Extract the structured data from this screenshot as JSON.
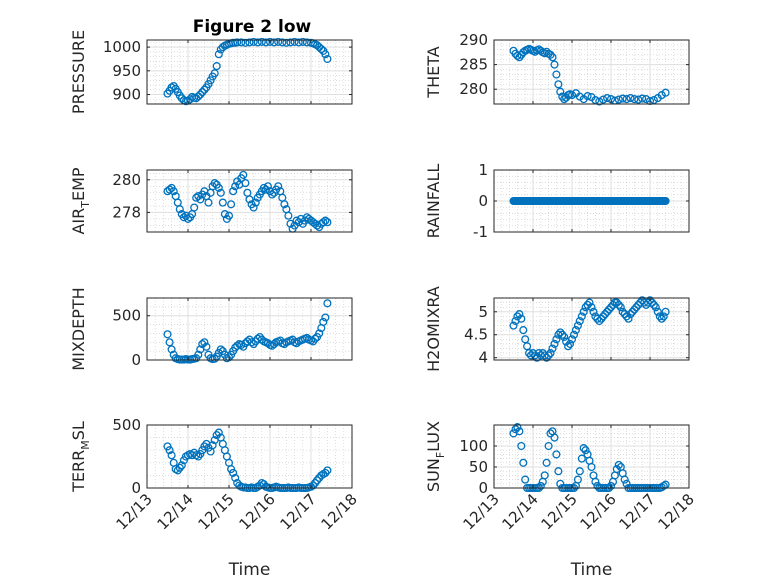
{
  "figure_title": "Figure 2 low",
  "colors": {
    "marker": "#0072bd",
    "axis": "#262626",
    "grid": "#dfdfdf",
    "minor_grid": "#c8c8c8",
    "background": "#ffffff"
  },
  "chart_data": [
    {
      "id": "pressure",
      "type": "scatter",
      "title": "Figure 2 low",
      "ylabel": "PRESSURE",
      "ylabel_parts": [
        "PRESSURE"
      ],
      "ylim": [
        880,
        1015
      ],
      "yticks": [
        900,
        950,
        1000
      ],
      "xlim": [
        13,
        18
      ],
      "x": [
        13.5,
        13.55,
        13.6,
        13.65,
        13.7,
        13.75,
        13.8,
        13.85,
        13.9,
        13.95,
        14.0,
        14.05,
        14.1,
        14.15,
        14.2,
        14.25,
        14.3,
        14.35,
        14.4,
        14.45,
        14.5,
        14.55,
        14.6,
        14.65,
        14.7,
        14.75,
        14.8,
        14.85,
        14.9,
        14.95,
        15.0,
        15.05,
        15.1,
        15.15,
        15.2,
        15.3,
        15.4,
        15.5,
        15.6,
        15.7,
        15.8,
        15.9,
        16.0,
        16.1,
        16.2,
        16.3,
        16.4,
        16.5,
        16.6,
        16.7,
        16.8,
        16.9,
        17.0,
        17.05,
        17.1,
        17.15,
        17.2,
        17.25,
        17.3,
        17.35,
        17.4
      ],
      "y": [
        902,
        908,
        915,
        918,
        912,
        905,
        898,
        892,
        888,
        886,
        887,
        890,
        895,
        893,
        892,
        896,
        900,
        905,
        910,
        915,
        922,
        930,
        938,
        945,
        960,
        985,
        995,
        1000,
        1003,
        1005,
        1007,
        1008,
        1009,
        1009,
        1010,
        1010,
        1009,
        1010,
        1011,
        1010,
        1011,
        1010,
        1011,
        1010,
        1011,
        1010,
        1009,
        1010,
        1011,
        1010,
        1011,
        1010,
        1009,
        1008,
        1006,
        1004,
        1000,
        996,
        992,
        985,
        975
      ]
    },
    {
      "id": "theta",
      "type": "scatter",
      "ylabel": "THETA",
      "ylabel_parts": [
        "THETA"
      ],
      "ylim": [
        277,
        290
      ],
      "yticks": [
        280,
        285,
        290
      ],
      "xlim": [
        13,
        18
      ],
      "x": [
        13.5,
        13.55,
        13.6,
        13.65,
        13.7,
        13.75,
        13.8,
        13.85,
        13.9,
        13.95,
        14.0,
        14.05,
        14.1,
        14.15,
        14.2,
        14.25,
        14.3,
        14.35,
        14.4,
        14.45,
        14.5,
        14.55,
        14.6,
        14.65,
        14.7,
        14.75,
        14.8,
        14.85,
        14.9,
        14.95,
        15.0,
        15.1,
        15.2,
        15.3,
        15.4,
        15.5,
        15.6,
        15.7,
        15.8,
        15.9,
        16.0,
        16.1,
        16.2,
        16.3,
        16.4,
        16.5,
        16.6,
        16.7,
        16.8,
        16.9,
        17.0,
        17.1,
        17.2,
        17.3,
        17.4
      ],
      "y": [
        287.8,
        287.2,
        286.8,
        286.5,
        287.0,
        287.5,
        287.8,
        288.0,
        288.2,
        288.0,
        287.8,
        287.6,
        287.9,
        288.1,
        287.8,
        287.5,
        287.3,
        287.6,
        287.2,
        287.0,
        286.5,
        285.0,
        283.0,
        281.0,
        279.5,
        278.5,
        278.0,
        278.3,
        278.8,
        279.0,
        278.8,
        279.2,
        278.5,
        278.0,
        278.6,
        278.4,
        277.8,
        277.5,
        277.9,
        278.2,
        278.0,
        277.7,
        277.9,
        278.1,
        278.0,
        278.2,
        278.0,
        277.9,
        278.1,
        278.0,
        277.6,
        277.8,
        278.2,
        278.8,
        279.3
      ]
    },
    {
      "id": "air_temp",
      "type": "scatter",
      "ylabel": "AIR_TEMP",
      "ylabel_parts": [
        "AIR",
        "T",
        "EMP"
      ],
      "ylim": [
        276.8,
        280.6
      ],
      "yticks": [
        278,
        280
      ],
      "xlim": [
        13,
        18
      ],
      "x": [
        13.5,
        13.55,
        13.6,
        13.65,
        13.7,
        13.75,
        13.8,
        13.85,
        13.9,
        13.95,
        14.0,
        14.05,
        14.1,
        14.15,
        14.2,
        14.25,
        14.3,
        14.35,
        14.4,
        14.45,
        14.5,
        14.55,
        14.6,
        14.65,
        14.7,
        14.75,
        14.8,
        14.85,
        14.9,
        14.95,
        15.0,
        15.05,
        15.1,
        15.15,
        15.2,
        15.25,
        15.3,
        15.35,
        15.4,
        15.45,
        15.5,
        15.55,
        15.6,
        15.65,
        15.7,
        15.75,
        15.8,
        15.85,
        15.9,
        15.95,
        16.0,
        16.05,
        16.1,
        16.15,
        16.2,
        16.25,
        16.3,
        16.35,
        16.4,
        16.45,
        16.5,
        16.55,
        16.6,
        16.65,
        16.7,
        16.75,
        16.8,
        16.85,
        16.9,
        16.95,
        17.0,
        17.05,
        17.1,
        17.15,
        17.2,
        17.25,
        17.3,
        17.35,
        17.4
      ],
      "y": [
        279.3,
        279.4,
        279.5,
        279.3,
        279.0,
        278.6,
        278.2,
        277.9,
        277.7,
        277.8,
        277.6,
        277.7,
        277.9,
        278.3,
        278.9,
        279.0,
        278.8,
        279.1,
        279.3,
        279.0,
        278.6,
        279.2,
        279.6,
        279.8,
        279.7,
        279.5,
        279.2,
        278.6,
        277.9,
        277.6,
        277.8,
        278.5,
        279.3,
        279.6,
        279.9,
        279.7,
        280.1,
        280.3,
        279.8,
        279.2,
        278.8,
        278.5,
        278.3,
        278.6,
        278.9,
        279.1,
        279.3,
        279.5,
        279.4,
        279.6,
        279.3,
        279.1,
        279.2,
        279.4,
        279.6,
        279.3,
        278.9,
        278.5,
        278.2,
        277.8,
        277.3,
        277.0,
        277.2,
        277.5,
        277.4,
        277.6,
        277.3,
        277.5,
        277.7,
        277.6,
        277.5,
        277.4,
        277.3,
        277.2,
        277.1,
        277.3,
        277.4,
        277.5,
        277.4
      ]
    },
    {
      "id": "rainfall",
      "type": "scatter",
      "ylabel": "RAINFALL",
      "ylabel_parts": [
        "RAINFALL"
      ],
      "ylim": [
        -1,
        1
      ],
      "yticks": [
        -1,
        0,
        1
      ],
      "xlim": [
        13,
        18
      ],
      "x_start": 13.5,
      "x_end": 17.4,
      "x_step": 0.025,
      "constant_y": 0
    },
    {
      "id": "mixdepth",
      "type": "scatter",
      "ylabel": "MIXDEPTH",
      "ylabel_parts": [
        "MIXDEPTH"
      ],
      "ylim": [
        0,
        700
      ],
      "yticks": [
        0,
        500
      ],
      "xlim": [
        13,
        18
      ],
      "x": [
        13.5,
        13.55,
        13.6,
        13.65,
        13.7,
        13.75,
        13.8,
        13.85,
        13.9,
        13.95,
        14.0,
        14.05,
        14.1,
        14.15,
        14.2,
        14.25,
        14.3,
        14.35,
        14.4,
        14.45,
        14.5,
        14.55,
        14.6,
        14.65,
        14.7,
        14.75,
        14.8,
        14.85,
        14.9,
        14.95,
        15.0,
        15.05,
        15.1,
        15.15,
        15.2,
        15.25,
        15.3,
        15.35,
        15.4,
        15.45,
        15.5,
        15.55,
        15.6,
        15.65,
        15.7,
        15.75,
        15.8,
        15.85,
        15.9,
        15.95,
        16.0,
        16.05,
        16.1,
        16.15,
        16.2,
        16.25,
        16.3,
        16.35,
        16.4,
        16.45,
        16.5,
        16.55,
        16.6,
        16.65,
        16.7,
        16.75,
        16.8,
        16.85,
        16.9,
        16.95,
        17.0,
        17.05,
        17.1,
        17.15,
        17.2,
        17.25,
        17.3,
        17.35,
        17.4
      ],
      "y": [
        290,
        200,
        120,
        60,
        20,
        10,
        5,
        5,
        5,
        10,
        5,
        5,
        10,
        15,
        20,
        60,
        120,
        180,
        200,
        150,
        60,
        20,
        10,
        15,
        40,
        80,
        120,
        100,
        60,
        20,
        30,
        60,
        100,
        140,
        160,
        180,
        170,
        150,
        190,
        210,
        230,
        200,
        180,
        210,
        240,
        260,
        230,
        210,
        200,
        190,
        170,
        160,
        180,
        200,
        210,
        220,
        190,
        180,
        200,
        210,
        220,
        230,
        200,
        190,
        210,
        220,
        230,
        240,
        250,
        230,
        220,
        210,
        240,
        260,
        300,
        360,
        430,
        480,
        640
      ]
    },
    {
      "id": "h2omixra",
      "type": "scatter",
      "ylabel": "H2OMIXRA",
      "ylabel_parts": [
        "H2OMIXRA"
      ],
      "ylim": [
        3.95,
        5.3
      ],
      "yticks": [
        4,
        4.5,
        5
      ],
      "xlim": [
        13,
        18
      ],
      "x": [
        13.5,
        13.55,
        13.6,
        13.65,
        13.7,
        13.75,
        13.8,
        13.85,
        13.9,
        13.95,
        14.0,
        14.05,
        14.1,
        14.15,
        14.2,
        14.25,
        14.3,
        14.35,
        14.4,
        14.45,
        14.5,
        14.55,
        14.6,
        14.65,
        14.7,
        14.75,
        14.8,
        14.85,
        14.9,
        14.95,
        15.0,
        15.05,
        15.1,
        15.15,
        15.2,
        15.25,
        15.3,
        15.35,
        15.4,
        15.45,
        15.5,
        15.55,
        15.6,
        15.65,
        15.7,
        15.75,
        15.8,
        15.85,
        15.9,
        15.95,
        16.0,
        16.05,
        16.1,
        16.15,
        16.2,
        16.25,
        16.3,
        16.35,
        16.4,
        16.45,
        16.5,
        16.55,
        16.6,
        16.65,
        16.7,
        16.75,
        16.8,
        16.85,
        16.9,
        16.95,
        17.0,
        17.05,
        17.1,
        17.15,
        17.2,
        17.25,
        17.3,
        17.35,
        17.4
      ],
      "y": [
        4.7,
        4.8,
        4.9,
        4.95,
        4.85,
        4.6,
        4.4,
        4.25,
        4.1,
        4.05,
        4.1,
        4.05,
        4.0,
        4.1,
        4.05,
        4.1,
        4.05,
        4.0,
        4.05,
        4.1,
        4.2,
        4.3,
        4.4,
        4.5,
        4.55,
        4.5,
        4.45,
        4.35,
        4.25,
        4.3,
        4.4,
        4.5,
        4.6,
        4.7,
        4.8,
        4.9,
        5.0,
        5.1,
        5.15,
        5.2,
        5.1,
        5.0,
        4.9,
        4.85,
        4.8,
        4.85,
        4.9,
        4.95,
        5.0,
        5.05,
        5.1,
        5.15,
        5.2,
        5.2,
        5.15,
        5.1,
        5.0,
        4.95,
        4.9,
        4.85,
        4.95,
        5.0,
        5.05,
        5.1,
        5.15,
        5.2,
        5.25,
        5.2,
        5.15,
        5.2,
        5.25,
        5.2,
        5.15,
        5.1,
        5.0,
        4.9,
        4.85,
        4.9,
        5.0
      ]
    },
    {
      "id": "terr_msl",
      "type": "scatter",
      "ylabel": "TERR_MSL",
      "ylabel_parts": [
        "TERR",
        "M",
        "SL"
      ],
      "ylim": [
        0,
        500
      ],
      "yticks": [
        0,
        500
      ],
      "xlim": [
        13,
        18
      ],
      "x": [
        13.5,
        13.55,
        13.6,
        13.65,
        13.7,
        13.75,
        13.8,
        13.85,
        13.9,
        13.95,
        14.0,
        14.05,
        14.1,
        14.15,
        14.2,
        14.25,
        14.3,
        14.35,
        14.4,
        14.45,
        14.5,
        14.55,
        14.6,
        14.65,
        14.7,
        14.75,
        14.8,
        14.85,
        14.9,
        14.95,
        15.0,
        15.05,
        15.1,
        15.15,
        15.2,
        15.25,
        15.3,
        15.35,
        15.4,
        15.45,
        15.5,
        15.55,
        15.6,
        15.65,
        15.7,
        15.75,
        15.8,
        15.85,
        15.9,
        15.95,
        16.0,
        16.05,
        16.1,
        16.15,
        16.2,
        16.25,
        16.3,
        16.35,
        16.4,
        16.45,
        16.5,
        16.55,
        16.6,
        16.65,
        16.7,
        16.75,
        16.8,
        16.85,
        16.9,
        16.95,
        17.0,
        17.05,
        17.1,
        17.15,
        17.2,
        17.25,
        17.3,
        17.35,
        17.4
      ],
      "y": [
        330,
        300,
        260,
        200,
        150,
        140,
        160,
        180,
        220,
        250,
        260,
        270,
        260,
        280,
        260,
        250,
        270,
        300,
        330,
        350,
        320,
        290,
        340,
        380,
        420,
        440,
        400,
        350,
        300,
        250,
        200,
        150,
        120,
        80,
        40,
        20,
        10,
        5,
        5,
        0,
        0,
        5,
        0,
        0,
        10,
        20,
        40,
        30,
        10,
        5,
        0,
        0,
        5,
        10,
        5,
        0,
        0,
        0,
        0,
        5,
        0,
        0,
        0,
        0,
        5,
        0,
        0,
        0,
        0,
        5,
        10,
        20,
        40,
        60,
        80,
        100,
        110,
        120,
        140
      ]
    },
    {
      "id": "sun_flux",
      "type": "scatter",
      "ylabel": "SUN_FLUX",
      "ylabel_parts": [
        "SUN",
        "F",
        "LUX"
      ],
      "ylim": [
        0,
        150
      ],
      "yticks": [
        0,
        50,
        100
      ],
      "xlim": [
        13,
        18
      ],
      "x": [
        13.5,
        13.55,
        13.6,
        13.65,
        13.7,
        13.75,
        13.8,
        13.85,
        13.9,
        13.95,
        14.0,
        14.05,
        14.1,
        14.15,
        14.2,
        14.25,
        14.3,
        14.35,
        14.4,
        14.45,
        14.5,
        14.55,
        14.6,
        14.65,
        14.7,
        14.75,
        14.8,
        14.85,
        14.9,
        14.95,
        15.0,
        15.05,
        15.1,
        15.15,
        15.2,
        15.25,
        15.3,
        15.35,
        15.4,
        15.45,
        15.5,
        15.55,
        15.6,
        15.65,
        15.7,
        15.75,
        15.8,
        15.85,
        15.9,
        15.95,
        16.0,
        16.05,
        16.1,
        16.15,
        16.2,
        16.25,
        16.3,
        16.35,
        16.4,
        16.45,
        16.5,
        16.55,
        16.6,
        16.65,
        16.7,
        16.75,
        16.8,
        16.85,
        16.9,
        16.95,
        17.0,
        17.05,
        17.1,
        17.15,
        17.2,
        17.25,
        17.3,
        17.35,
        17.4
      ],
      "y": [
        130,
        140,
        145,
        135,
        100,
        60,
        20,
        0,
        0,
        0,
        0,
        0,
        0,
        0,
        5,
        15,
        30,
        60,
        100,
        130,
        135,
        120,
        80,
        40,
        10,
        0,
        0,
        0,
        0,
        0,
        0,
        0,
        5,
        20,
        40,
        70,
        95,
        90,
        80,
        65,
        50,
        30,
        15,
        5,
        0,
        0,
        0,
        0,
        0,
        0,
        5,
        15,
        30,
        45,
        55,
        50,
        35,
        20,
        10,
        0,
        0,
        0,
        0,
        0,
        0,
        0,
        0,
        0,
        0,
        0,
        0,
        0,
        0,
        0,
        0,
        0,
        2,
        5,
        8
      ]
    }
  ],
  "xaxis": {
    "ticks": [
      13,
      14,
      15,
      16,
      17,
      18
    ],
    "tick_labels": [
      "12/13",
      "12/14",
      "12/15",
      "12/16",
      "12/17",
      "12/18"
    ],
    "label": "Time"
  }
}
